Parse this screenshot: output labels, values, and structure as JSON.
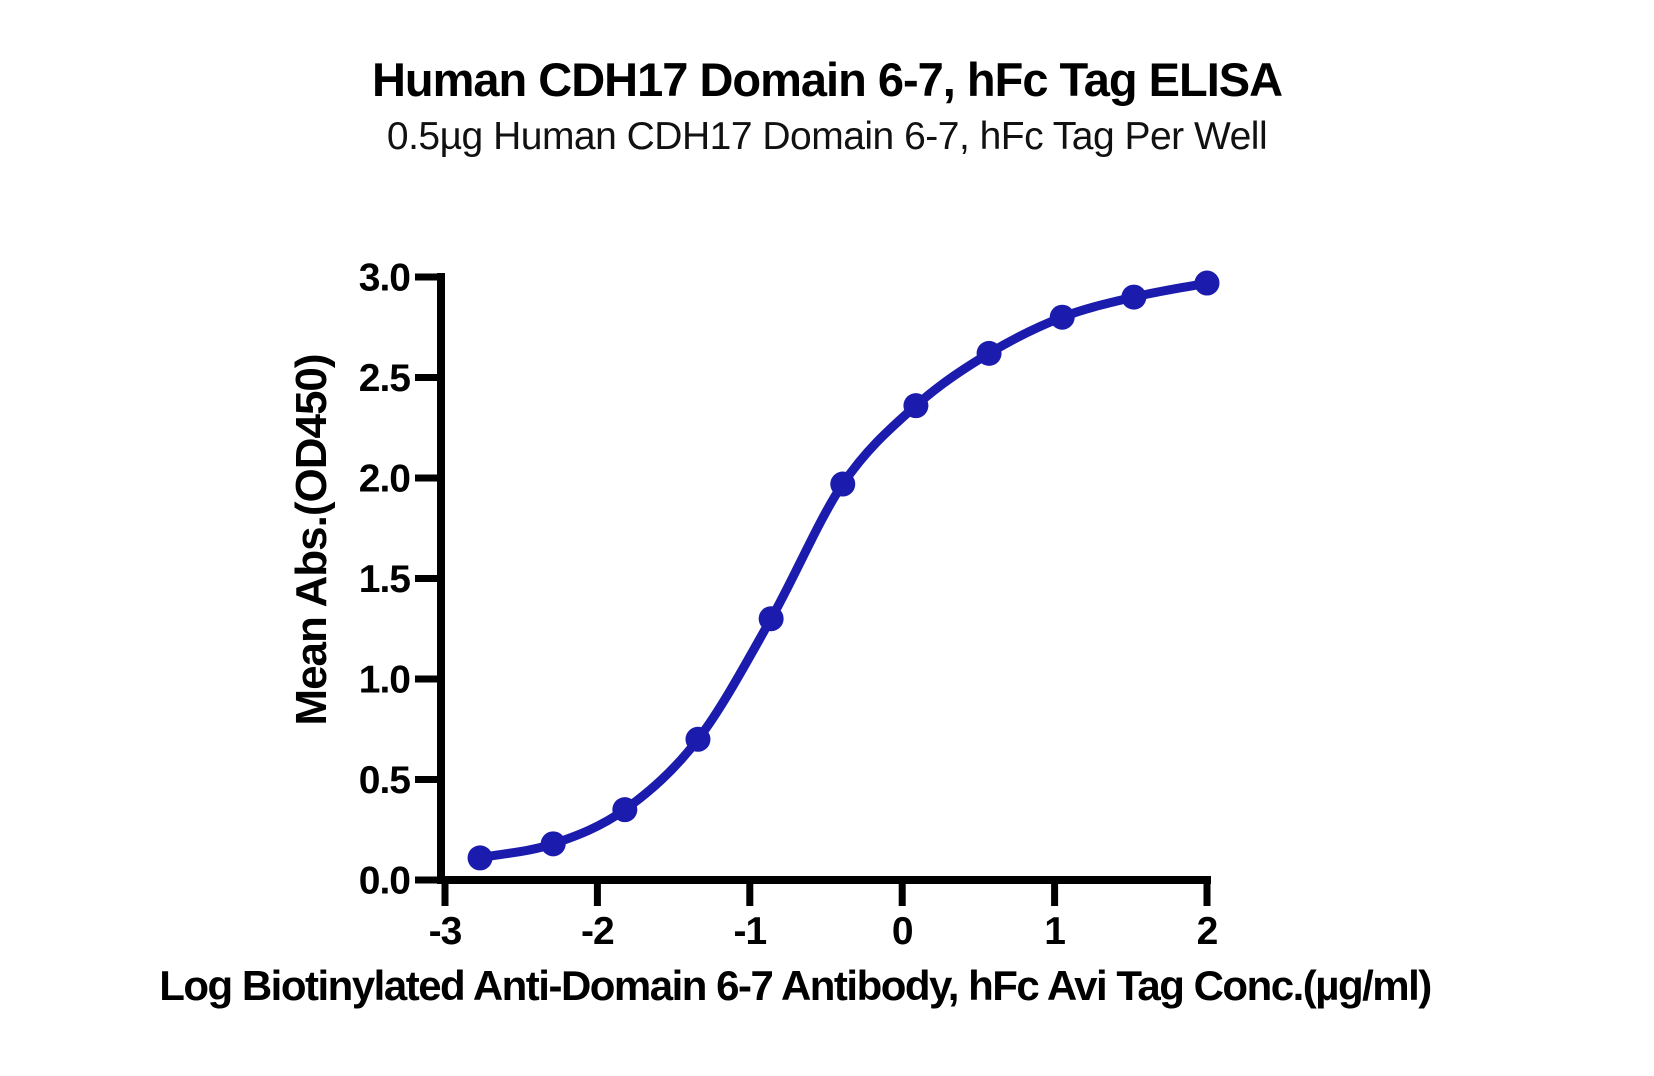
{
  "header": {
    "title": "Human CDH17 Domain 6-7, hFc Tag ELISA",
    "subtitle": "0.5µg Human CDH17 Domain 6-7, hFc Tag Per Well"
  },
  "chart_data": {
    "type": "scatter",
    "fit": "sigmoidal 4PL dose-response curve through points",
    "title": "Human CDH17 Domain 6-7, hFc Tag ELISA",
    "subtitle": "0.5µg Human CDH17 Domain 6-7, hFc Tag Per Well",
    "xlabel": "Log Biotinylated Anti-Domain 6-7 Antibody, hFc Avi Tag Conc.(µg/ml)",
    "ylabel": "Mean Abs.(OD450)",
    "x": [
      -2.77,
      -2.29,
      -1.82,
      -1.34,
      -0.86,
      -0.39,
      0.09,
      0.57,
      1.05,
      1.52,
      2.0
    ],
    "y": [
      0.11,
      0.18,
      0.35,
      0.7,
      1.3,
      1.97,
      2.36,
      2.62,
      2.8,
      2.9,
      2.97
    ],
    "xtick_values": [
      -3,
      -2,
      -1,
      0,
      1,
      2
    ],
    "xtick_labels": [
      "-3",
      "-2",
      "-1",
      "0",
      "1",
      "2"
    ],
    "ytick_values": [
      0,
      0.5,
      1.0,
      1.5,
      2.0,
      2.5,
      3.0
    ],
    "ytick_labels": [
      "0.0",
      "0.5",
      "1.0",
      "1.5",
      "2.0",
      "2.5",
      "3.0"
    ],
    "xlim": [
      -3.03,
      2.0
    ],
    "ylim": [
      0.0,
      3.0
    ],
    "grid": false,
    "legend": "none",
    "marker": "circle",
    "colors": {
      "line": "#1b1bad",
      "marker": "#1b1bad",
      "axis": "#000000",
      "text": "#000000",
      "background": "#ffffff"
    }
  }
}
